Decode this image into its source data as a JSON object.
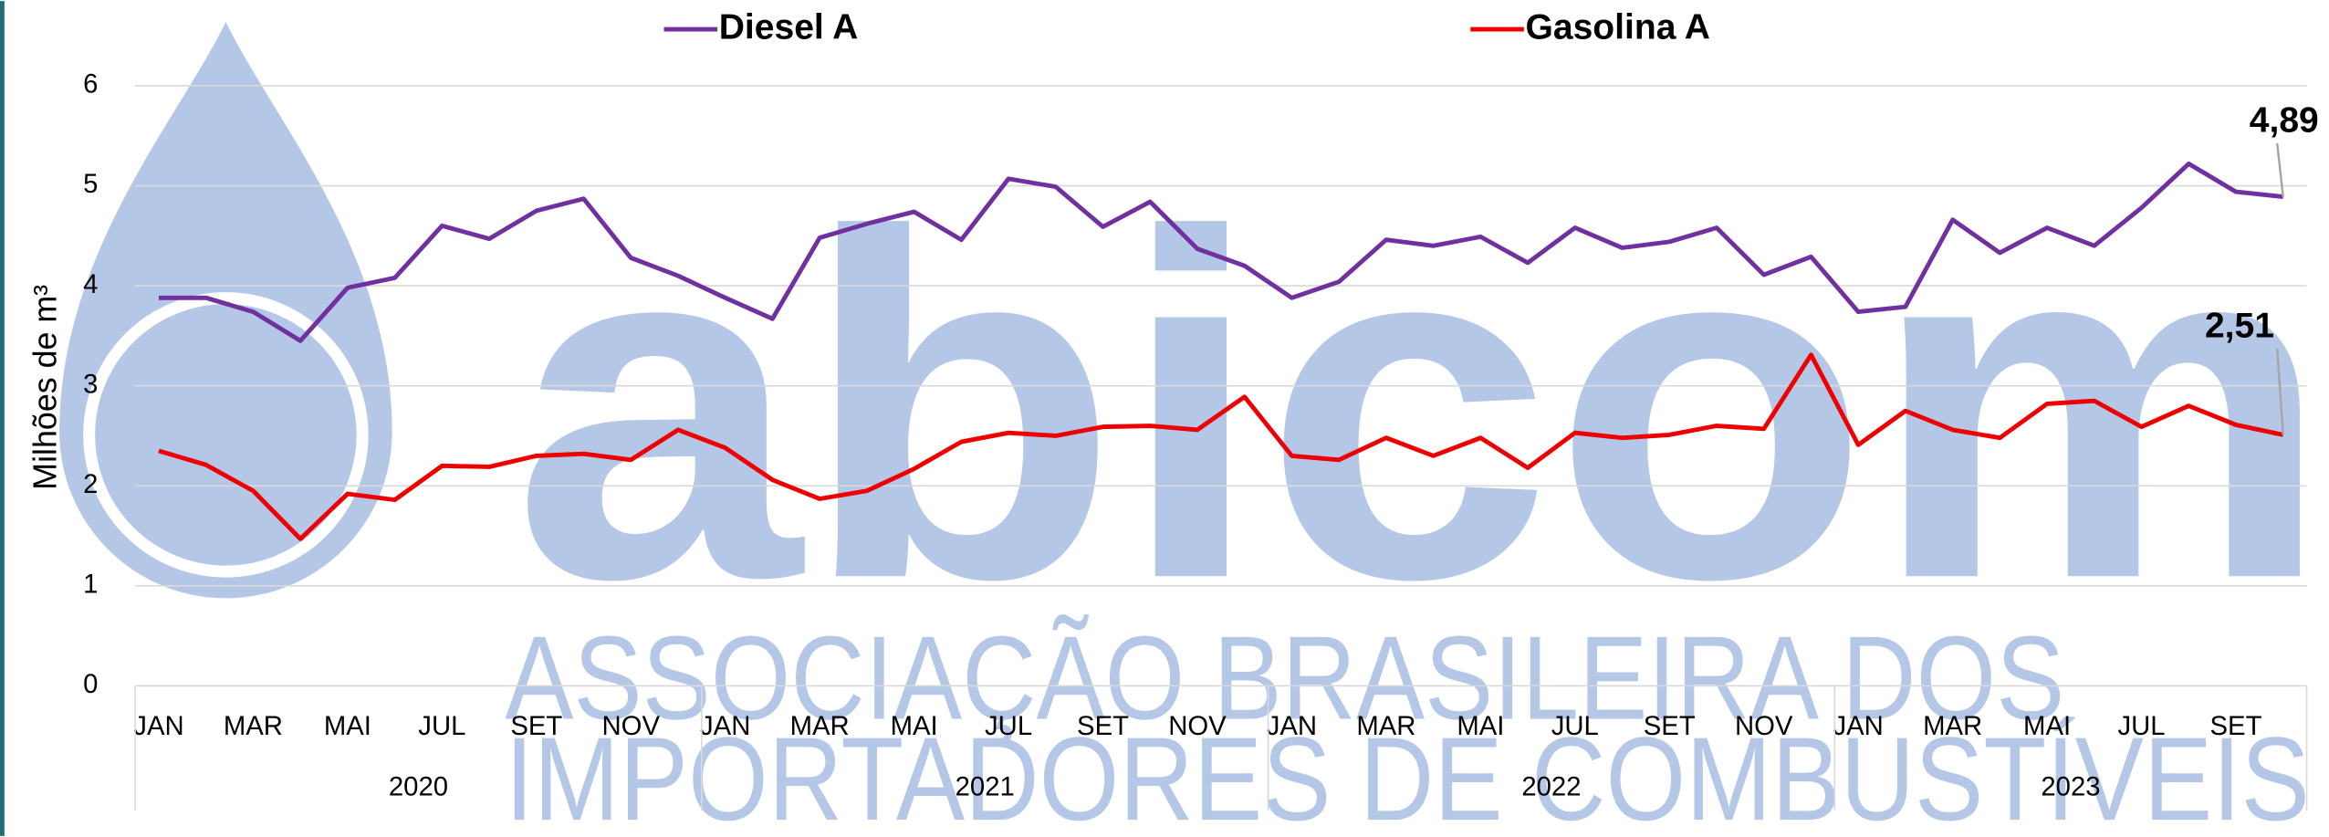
{
  "chart_data": {
    "type": "line",
    "y_label": "Milhões de m³",
    "watermark": {
      "logo": "abicom",
      "lines": [
        "ASSOCIAÇÃO BRASILEIRA DOS",
        "IMPORTADORES DE COMBUSTÍVEIS"
      ]
    },
    "legend": "top",
    "grid": true,
    "years": [
      "2020",
      "2021",
      "2022",
      "2023"
    ],
    "categories": [
      "JAN",
      null,
      "MAR",
      null,
      "MAI",
      null,
      "JUL",
      null,
      "SET",
      null,
      "NOV",
      null,
      "JAN",
      null,
      "MAR",
      null,
      "MAI",
      null,
      "JUL",
      null,
      "SET",
      null,
      "NOV",
      null,
      "JAN",
      null,
      "MAR",
      null,
      "MAI",
      null,
      "JUL",
      null,
      "SET",
      null,
      "NOV",
      null,
      "JAN",
      null,
      "MAR",
      null,
      "MAI",
      null,
      "JUL",
      null,
      "SET",
      null
    ],
    "ylim": [
      0,
      6
    ],
    "yticks": [
      0,
      1,
      2,
      3,
      4,
      5,
      6
    ],
    "series": [
      {
        "name": "Diesel A",
        "color": "#7030a0",
        "values": [
          3.88,
          3.88,
          3.74,
          3.45,
          3.98,
          4.08,
          4.6,
          4.47,
          4.75,
          4.87,
          4.28,
          4.1,
          3.88,
          3.67,
          4.48,
          4.62,
          4.74,
          4.46,
          5.07,
          4.99,
          4.59,
          4.84,
          4.37,
          4.2,
          3.88,
          4.04,
          4.46,
          4.4,
          4.49,
          4.23,
          4.58,
          4.38,
          4.44,
          4.58,
          4.11,
          4.29,
          3.74,
          3.79,
          4.66,
          4.33,
          4.58,
          4.4,
          4.78,
          5.22,
          4.94,
          4.89
        ],
        "value_labels": [
          null,
          null,
          null,
          null,
          null,
          null,
          null,
          null,
          null,
          null,
          null,
          null,
          null,
          null,
          null,
          null,
          null,
          null,
          null,
          null,
          null,
          null,
          null,
          null,
          null,
          null,
          null,
          null,
          null,
          null,
          null,
          null,
          null,
          null,
          null,
          null,
          null,
          null,
          null,
          null,
          null,
          null,
          null,
          null,
          null,
          "4,89"
        ]
      },
      {
        "name": "Gasolina A",
        "color": "#ee0000",
        "values": [
          2.35,
          2.21,
          1.95,
          1.47,
          1.92,
          1.86,
          2.2,
          2.19,
          2.3,
          2.32,
          2.26,
          2.56,
          2.38,
          2.06,
          1.87,
          1.95,
          2.17,
          2.44,
          2.53,
          2.5,
          2.59,
          2.6,
          2.56,
          2.89,
          2.3,
          2.26,
          2.48,
          2.3,
          2.48,
          2.18,
          2.53,
          2.48,
          2.51,
          2.6,
          2.57,
          3.31,
          2.41,
          2.75,
          2.56,
          2.48,
          2.82,
          2.85,
          2.59,
          2.8,
          2.61,
          2.51
        ],
        "value_labels": [
          null,
          null,
          null,
          null,
          null,
          null,
          null,
          null,
          null,
          null,
          null,
          null,
          null,
          null,
          null,
          null,
          null,
          null,
          null,
          null,
          null,
          null,
          null,
          null,
          null,
          null,
          null,
          null,
          null,
          null,
          null,
          null,
          null,
          null,
          null,
          null,
          null,
          null,
          null,
          null,
          null,
          null,
          null,
          null,
          null,
          "2,51"
        ]
      }
    ]
  }
}
